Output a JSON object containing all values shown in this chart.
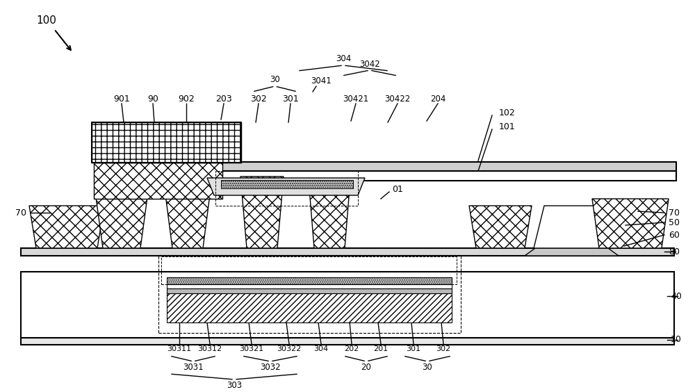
{
  "bg_color": "#ffffff",
  "line_color": "#000000",
  "fig_width": 10.0,
  "fig_height": 5.64
}
